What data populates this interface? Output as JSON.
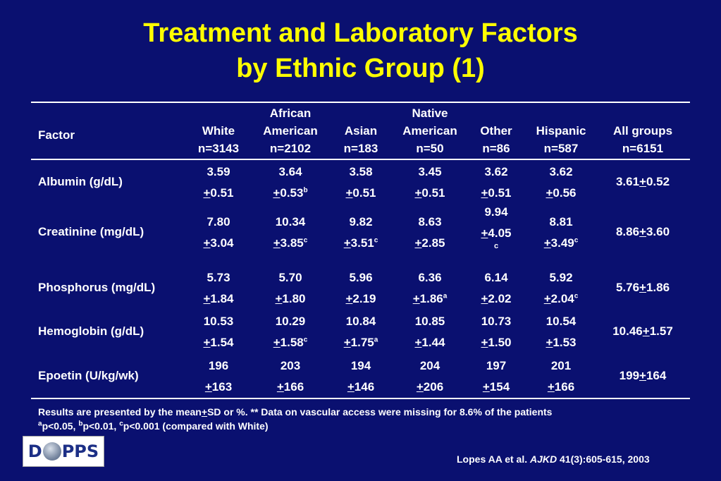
{
  "title_line1": "Treatment and Laboratory Factors",
  "title_line2": "by Ethnic Group (1)",
  "header": {
    "factor": "Factor",
    "columns": [
      {
        "l1": "",
        "l2": "White",
        "l3": "n=3143"
      },
      {
        "l1": "African",
        "l2": "American",
        "l3": "n=2102"
      },
      {
        "l1": "",
        "l2": "Asian",
        "l3": "n=183"
      },
      {
        "l1": "Native",
        "l2": "American",
        "l3": "n=50"
      },
      {
        "l1": "",
        "l2": "Other",
        "l3": "n=86"
      },
      {
        "l1": "",
        "l2": "Hispanic",
        "l3": "n=587"
      },
      {
        "l1": "",
        "l2": "All groups",
        "l3": "n=6151"
      }
    ]
  },
  "rows": [
    {
      "factor": "Albumin (g/dL)",
      "cells": [
        {
          "mean": "3.59",
          "sd": "0.51",
          "sup": ""
        },
        {
          "mean": "3.64",
          "sd": "0.53",
          "sup": "b"
        },
        {
          "mean": "3.58",
          "sd": "0.51",
          "sup": ""
        },
        {
          "mean": "3.45",
          "sd": "0.51",
          "sup": ""
        },
        {
          "mean": "3.62",
          "sd": "0.51",
          "sup": ""
        },
        {
          "mean": "3.62",
          "sd": "0.56",
          "sup": ""
        }
      ],
      "all": {
        "mean": "3.61",
        "sd": "0.52"
      }
    },
    {
      "factor": "Creatinine (mg/dL)",
      "cells": [
        {
          "mean": "7.80",
          "sd": "3.04",
          "sup": ""
        },
        {
          "mean": "10.34",
          "sd": "3.85",
          "sup": "c"
        },
        {
          "mean": "9.82",
          "sd": "3.51",
          "sup": "c"
        },
        {
          "mean": "8.63",
          "sd": "2.85",
          "sup": ""
        },
        {
          "mean": "9.94",
          "sd": "4.05",
          "sup": "c"
        },
        {
          "mean": "8.81",
          "sd": "3.49",
          "sup": "c"
        }
      ],
      "all": {
        "mean": "8.86",
        "sd": "3.60"
      }
    },
    {
      "factor": "Phosphorus (mg/dL)",
      "cells": [
        {
          "mean": "5.73",
          "sd": "1.84",
          "sup": ""
        },
        {
          "mean": "5.70",
          "sd": "1.80",
          "sup": ""
        },
        {
          "mean": "5.96",
          "sd": "2.19",
          "sup": ""
        },
        {
          "mean": "6.36",
          "sd": "1.86",
          "sup": "a"
        },
        {
          "mean": "6.14",
          "sd": "2.02",
          "sup": ""
        },
        {
          "mean": "5.92",
          "sd": "2.04",
          "sup": "c"
        }
      ],
      "all": {
        "mean": "5.76",
        "sd": "1.86"
      }
    },
    {
      "factor": "Hemoglobin (g/dL)",
      "cells": [
        {
          "mean": "10.53",
          "sd": "1.54",
          "sup": ""
        },
        {
          "mean": "10.29",
          "sd": "1.58",
          "sup": "c"
        },
        {
          "mean": "10.84",
          "sd": "1.75",
          "sup": "a"
        },
        {
          "mean": "10.85",
          "sd": "1.44",
          "sup": ""
        },
        {
          "mean": "10.73",
          "sd": "1.50",
          "sup": ""
        },
        {
          "mean": "10.54",
          "sd": "1.53",
          "sup": ""
        }
      ],
      "all": {
        "mean": "10.46",
        "sd": "1.57"
      }
    },
    {
      "factor": "Epoetin (U/kg/wk)",
      "cells": [
        {
          "mean": "196",
          "sd": "163",
          "sup": ""
        },
        {
          "mean": "203",
          "sd": "166",
          "sup": ""
        },
        {
          "mean": "194",
          "sd": "146",
          "sup": ""
        },
        {
          "mean": "204",
          "sd": "206",
          "sup": ""
        },
        {
          "mean": "197",
          "sd": "154",
          "sup": ""
        },
        {
          "mean": "201",
          "sd": "166",
          "sup": ""
        }
      ],
      "all": {
        "mean": "199",
        "sd": "164"
      }
    }
  ],
  "pm_symbol": "+",
  "footnote1_a": "Results are presented by the mean",
  "footnote1_b": "SD or %. ** Data on vascular access were missing for 8.6% of the patients",
  "footnote2": "p<0.05, ",
  "footnote2_b": "p<0.01, ",
  "footnote2_c": "p<0.001 (compared with White)",
  "footnote_sups": [
    "a",
    "b",
    "c"
  ],
  "logo": {
    "left": "D",
    "right": "PPS"
  },
  "citation": {
    "authors": "Lopes AA et al. ",
    "journal": "AJKD",
    "ref": " 41(3):605-615, 2003"
  },
  "colors": {
    "background": "#0a1070",
    "title": "#ffff00",
    "text": "#ffffff"
  }
}
